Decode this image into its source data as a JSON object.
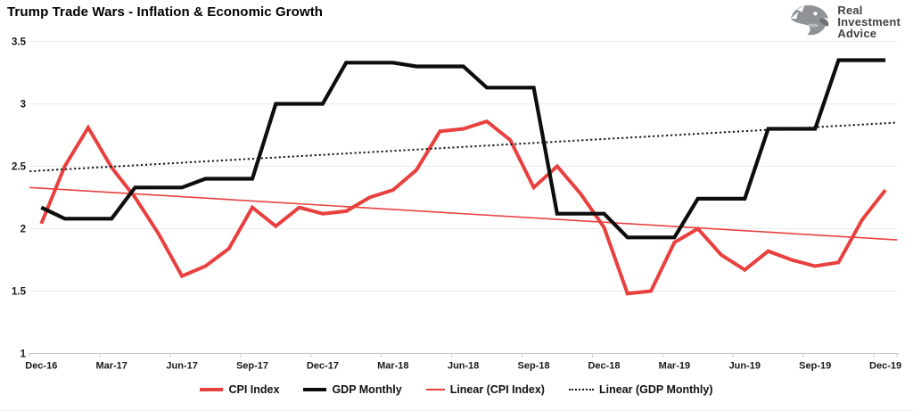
{
  "title": "Trump Trade Wars - Inflation & Economic Growth",
  "logo": {
    "line1": "Real",
    "line2": "Investment",
    "line3": "Advice"
  },
  "legend": {
    "position": "bottom-center",
    "items": [
      {
        "label": "CPI Index",
        "style": "thick",
        "color": "#e8403e"
      },
      {
        "label": "GDP Monthly",
        "style": "thick",
        "color": "#0d0d0d"
      },
      {
        "label": "Linear (CPI Index)",
        "style": "thin",
        "color": "#e8403e"
      },
      {
        "label": "Linear (GDP Monthly)",
        "style": "dotted",
        "color": "#1a1a1a"
      }
    ]
  },
  "colors": {
    "grid": "#ebebeb",
    "axis": "#c9c9c9",
    "text": "#1a1a1a",
    "cpi_red": "#e8403e",
    "gdp_black": "#0d0d0d"
  },
  "chart_data": {
    "type": "line",
    "x": [
      "Dec-16",
      "Jan-17",
      "Feb-17",
      "Mar-17",
      "Apr-17",
      "May-17",
      "Jun-17",
      "Jul-17",
      "Aug-17",
      "Sep-17",
      "Oct-17",
      "Nov-17",
      "Dec-17",
      "Jan-18",
      "Feb-18",
      "Mar-18",
      "Apr-18",
      "May-18",
      "Jun-18",
      "Jul-18",
      "Aug-18",
      "Sep-18",
      "Oct-18",
      "Nov-18",
      "Dec-18",
      "Jan-19",
      "Feb-19",
      "Mar-19",
      "Apr-19",
      "May-19",
      "Jun-19",
      "Jul-19",
      "Aug-19",
      "Sep-19",
      "Oct-19",
      "Nov-19",
      "Dec-19"
    ],
    "x_tick_every": 3,
    "visible_x_tick_labels": [
      "Dec-16",
      "Mar-17",
      "Jun-17",
      "Sep-17",
      "Dec-17",
      "Mar-18",
      "Jun-18",
      "Sep-18",
      "Dec-18",
      "Mar-19",
      "Jun-19",
      "Sep-19",
      "Dec-19"
    ],
    "series": [
      {
        "name": "CPI Index",
        "color": "#e8403e",
        "width": 4,
        "values": [
          2.04,
          2.5,
          2.81,
          2.49,
          2.25,
          1.96,
          1.62,
          1.7,
          1.84,
          2.17,
          2.02,
          2.17,
          2.12,
          2.14,
          2.25,
          2.31,
          2.47,
          2.78,
          2.8,
          2.86,
          2.71,
          2.33,
          2.5,
          2.28,
          2.01,
          1.48,
          1.5,
          1.89,
          2.0,
          1.79,
          1.67,
          1.82,
          1.75,
          1.7,
          1.73,
          2.07,
          2.31
        ]
      },
      {
        "name": "GDP Monthly",
        "color": "#0d0d0d",
        "width": 4.2,
        "values": [
          2.17,
          2.08,
          2.08,
          2.08,
          2.33,
          2.33,
          2.33,
          2.4,
          2.4,
          2.4,
          3.0,
          3.0,
          3.0,
          3.33,
          3.33,
          3.33,
          3.3,
          3.3,
          3.3,
          3.13,
          3.13,
          3.13,
          2.12,
          2.12,
          2.12,
          1.93,
          1.93,
          1.93,
          2.24,
          2.24,
          2.24,
          2.8,
          2.8,
          2.8,
          3.35,
          3.35,
          3.35
        ]
      }
    ],
    "trendlines": [
      {
        "name": "Linear (CPI Index)",
        "color": "#e8403e",
        "style": "solid",
        "width": 1.6,
        "start": 2.33,
        "end": 1.91
      },
      {
        "name": "Linear (GDP Monthly)",
        "color": "#1a1a1a",
        "style": "dotted",
        "width": 2,
        "start": 2.46,
        "end": 2.85
      }
    ],
    "ylim": [
      1,
      3.5
    ],
    "yticks": [
      3.5,
      3,
      2.5,
      2,
      1.5,
      1
    ],
    "ytick_labels": [
      "3.5",
      "3",
      "2.5",
      "2",
      "1.5",
      "1"
    ],
    "grid": "horizontal"
  }
}
